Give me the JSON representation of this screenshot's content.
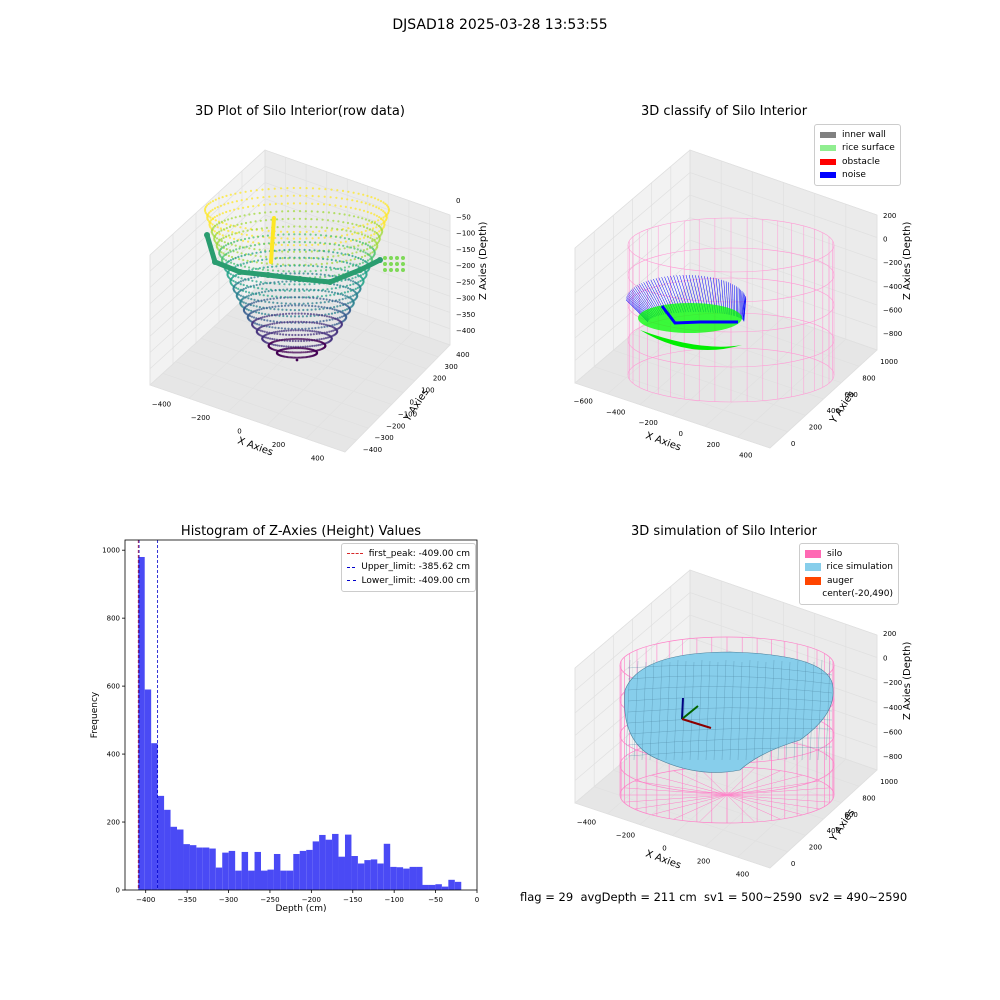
{
  "figure": {
    "suptitle": "DJSAD18 2025-03-28 13:53:55",
    "footer": "flag = 29  avgDepth = 211 cm  sv1 = 500~2590  sv2 = 490~2590"
  },
  "colors": {
    "histogram_bar": "#4a4af5",
    "first_peak_line": "#d62728",
    "limit_line": "#0000cc",
    "inner_wall": "#808080",
    "rice_surface": "#90ee90",
    "obstacle": "#ff0000",
    "noise": "#0000ff",
    "silo": "#ff69b4",
    "rice_simulation": "#87ceeb",
    "auger": "#ff4500"
  },
  "chart_data": [
    {
      "type": "scatter",
      "projection": "3d",
      "title": "3D Plot of Silo Interior(row data)",
      "xlabel": "X Axies",
      "ylabel": "Y Axies",
      "zlabel": "Z Axies (Depth)",
      "xticks": [
        "−400",
        "−200",
        "0",
        "200",
        "400"
      ],
      "yticks": [
        "−400",
        "−300",
        "−200",
        "−100",
        "0",
        "100",
        "200",
        "300",
        "400"
      ],
      "zticks": [
        "0",
        "−50",
        "−100",
        "−150",
        "−200",
        "−250",
        "−300",
        "−350",
        "−400"
      ],
      "colormap": "viridis",
      "description_shape": "bowl"
    },
    {
      "type": "scatter",
      "projection": "3d",
      "title": "3D classify of Silo Interior",
      "xlabel": "X Axies",
      "ylabel": "Y Axies",
      "zlabel": "Z Axies (Depth)",
      "xticks": [
        "−600",
        "−400",
        "−200",
        "0",
        "200",
        "400"
      ],
      "yticks": [
        "0",
        "200",
        "400",
        "600",
        "800",
        "1000"
      ],
      "zticks": [
        "200",
        "0",
        "−200",
        "−400",
        "−600",
        "−800"
      ],
      "legend": [
        "inner wall",
        "rice surface",
        "obstacle",
        "noise"
      ],
      "legend_position": "top-right"
    },
    {
      "type": "bar",
      "title": "Histogram of Z-Axies (Height) Values",
      "xlabel": "Depth (cm)",
      "ylabel": "Frequency",
      "xlim": [
        -425,
        0
      ],
      "ylim": [
        0,
        1030
      ],
      "xticks": [
        "−400",
        "−350",
        "−300",
        "−250",
        "−200",
        "−150",
        "−100",
        "−50",
        "0"
      ],
      "yticks": [
        "0",
        "200",
        "400",
        "600",
        "800",
        "1000"
      ],
      "bin_width": 7.8,
      "bins_start": [
        -409.0,
        -401.2,
        -393.4,
        -385.6,
        -377.8,
        -370.0,
        -362.2,
        -354.4,
        -346.6,
        -338.8,
        -331.0,
        -323.2,
        -315.4,
        -307.6,
        -299.8,
        -292.0,
        -284.2,
        -276.4,
        -268.6,
        -260.8,
        -253.0,
        -245.2,
        -237.4,
        -229.6,
        -221.8,
        -214.0,
        -206.2,
        -198.4,
        -190.6,
        -182.8,
        -175.0,
        -167.2,
        -159.4,
        -151.6,
        -143.8,
        -136.0,
        -128.2,
        -120.4,
        -112.6,
        -104.8,
        -97.0,
        -89.2,
        -81.4,
        -73.6,
        -65.8,
        -58.0,
        -50.2,
        -42.4,
        -34.6,
        -26.8
      ],
      "values": [
        980,
        590,
        432,
        277,
        236,
        186,
        178,
        135,
        132,
        125,
        125,
        122,
        66,
        110,
        115,
        57,
        112,
        57,
        112,
        57,
        60,
        106,
        57,
        57,
        106,
        115,
        118,
        143,
        162,
        148,
        165,
        98,
        163,
        100,
        78,
        88,
        90,
        78,
        136,
        68,
        67,
        63,
        68,
        68,
        15,
        15,
        17,
        10,
        30,
        24
      ],
      "vlines": [
        {
          "label": "first_peak: -409.00 cm",
          "x": -409.0,
          "color": "#d62728"
        },
        {
          "label": "Upper_limit: -385.62 cm",
          "x": -385.62,
          "color": "#0000cc"
        },
        {
          "label": "Lower_limit: -409.00 cm",
          "x": -409.0,
          "color": "#0000cc"
        }
      ],
      "legend_position": "top-right"
    },
    {
      "type": "surface",
      "projection": "3d",
      "title": "3D simulation of Silo Interior",
      "xlabel": "X Axies",
      "ylabel": "Y Axies",
      "zlabel": "Z Axies (Depth)",
      "xticks": [
        "−400",
        "−200",
        "0",
        "200",
        "400"
      ],
      "yticks": [
        "0",
        "200",
        "400",
        "600",
        "800",
        "1000"
      ],
      "zticks": [
        "200",
        "0",
        "−200",
        "−400",
        "−600",
        "−800"
      ],
      "legend": [
        "silo",
        "rice simulation",
        "auger",
        "center(-20,490)"
      ],
      "legend_position": "top-right"
    }
  ]
}
